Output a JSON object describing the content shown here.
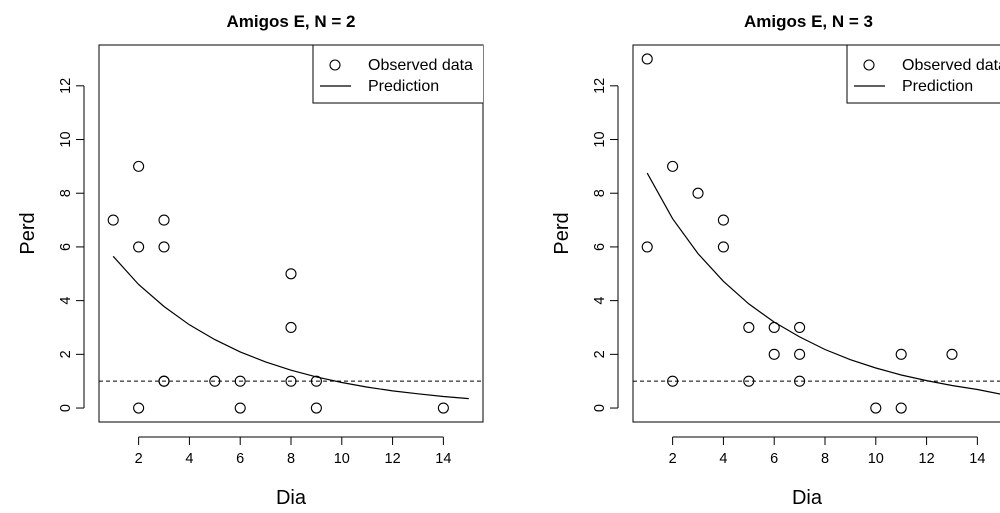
{
  "chart_data": [
    {
      "type": "scatter",
      "title": "Amigos E, N = 2",
      "xlabel": "Dia",
      "ylabel": "Perd",
      "xlim": [
        0.44,
        15.56
      ],
      "ylim": [
        -0.52,
        13.52
      ],
      "xticks": [
        2,
        4,
        6,
        8,
        10,
        12,
        14
      ],
      "yticks": [
        0,
        2,
        4,
        6,
        8,
        10,
        12
      ],
      "legend": {
        "position": "top-right",
        "entries": [
          "Observed data",
          "Prediction"
        ]
      },
      "reference_line": {
        "y": 1,
        "style": "dashed"
      },
      "series": [
        {
          "name": "Observed data",
          "marker": "open-circle",
          "points": [
            [
              1,
              7
            ],
            [
              2,
              9
            ],
            [
              2,
              6
            ],
            [
              2,
              0
            ],
            [
              3,
              7
            ],
            [
              3,
              6
            ],
            [
              3,
              1
            ],
            [
              3,
              1
            ],
            [
              5,
              1
            ],
            [
              6,
              1
            ],
            [
              6,
              0
            ],
            [
              8,
              5
            ],
            [
              8,
              3
            ],
            [
              8,
              1
            ],
            [
              9,
              1
            ],
            [
              9,
              0
            ],
            [
              14,
              0
            ]
          ]
        },
        {
          "name": "Prediction",
          "marker": "line",
          "points": [
            [
              1,
              5.65
            ],
            [
              2,
              4.6
            ],
            [
              3,
              3.78
            ],
            [
              4,
              3.1
            ],
            [
              5,
              2.55
            ],
            [
              6,
              2.09
            ],
            [
              7,
              1.72
            ],
            [
              8,
              1.41
            ],
            [
              9,
              1.16
            ],
            [
              10,
              0.95
            ],
            [
              11,
              0.78
            ],
            [
              12,
              0.64
            ],
            [
              13,
              0.53
            ],
            [
              14,
              0.43
            ],
            [
              15,
              0.35
            ]
          ]
        }
      ]
    },
    {
      "type": "scatter",
      "title": "Amigos E, N = 3",
      "xlabel": "Dia",
      "ylabel": "Perd",
      "xlim": [
        0.44,
        15.56
      ],
      "ylim": [
        -0.52,
        13.52
      ],
      "xticks": [
        2,
        4,
        6,
        8,
        10,
        12,
        14
      ],
      "yticks": [
        0,
        2,
        4,
        6,
        8,
        10,
        12
      ],
      "legend": {
        "position": "top-right",
        "entries": [
          "Observed data",
          "Prediction"
        ]
      },
      "reference_line": {
        "y": 1,
        "style": "dashed"
      },
      "series": [
        {
          "name": "Observed data",
          "marker": "open-circle",
          "points": [
            [
              1,
              13
            ],
            [
              1,
              6
            ],
            [
              2,
              9
            ],
            [
              2,
              1
            ],
            [
              3,
              8
            ],
            [
              4,
              7
            ],
            [
              4,
              6
            ],
            [
              5,
              3
            ],
            [
              5,
              1
            ],
            [
              6,
              3
            ],
            [
              6,
              2
            ],
            [
              7,
              3
            ],
            [
              7,
              2
            ],
            [
              7,
              1
            ],
            [
              10,
              0
            ],
            [
              11,
              2
            ],
            [
              11,
              0
            ],
            [
              13,
              2
            ]
          ]
        },
        {
          "name": "Prediction",
          "marker": "line",
          "points": [
            [
              1,
              8.75
            ],
            [
              2,
              7.05
            ],
            [
              3,
              5.75
            ],
            [
              4,
              4.72
            ],
            [
              5,
              3.88
            ],
            [
              6,
              3.2
            ],
            [
              7,
              2.65
            ],
            [
              8,
              2.18
            ],
            [
              9,
              1.8
            ],
            [
              10,
              1.49
            ],
            [
              11,
              1.23
            ],
            [
              12,
              1.02
            ],
            [
              13,
              0.84
            ],
            [
              14,
              0.69
            ],
            [
              15,
              0.5
            ]
          ]
        }
      ]
    }
  ]
}
